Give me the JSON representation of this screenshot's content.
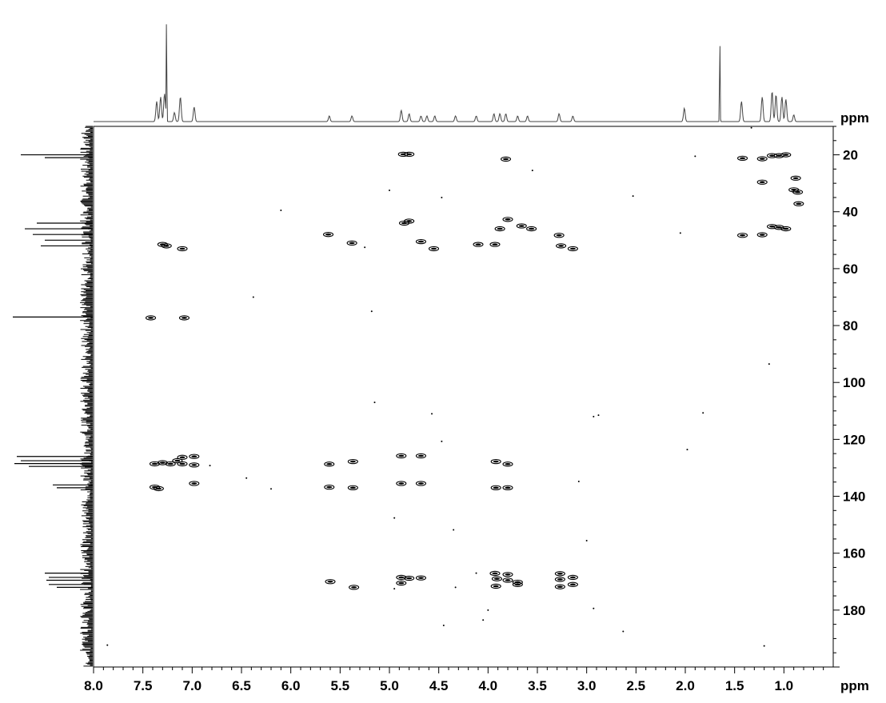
{
  "chart_data": {
    "type": "scatter",
    "subtype": "2D NMR contour (HMBC-style) with projections",
    "title": "",
    "xlabel": "ppm",
    "ylabel": "ppm",
    "x_axis": {
      "label": "ppm",
      "range": [
        8.0,
        0.5
      ],
      "reversed": true,
      "ticks": [
        "8.0",
        "7.5",
        "7.0",
        "6.5",
        "6.0",
        "5.5",
        "5.0",
        "4.5",
        "4.0",
        "3.5",
        "3.0",
        "2.5",
        "2.0",
        "1.5",
        "1.0"
      ]
    },
    "y_axis": {
      "label": "ppm",
      "range": [
        10,
        200
      ],
      "reversed": false,
      "ticks": [
        "20",
        "40",
        "60",
        "80",
        "100",
        "120",
        "140",
        "160",
        "180"
      ]
    },
    "grid": false,
    "color": "#000000",
    "top_projection_peaks": [
      {
        "x": 7.36,
        "h": 0.18
      },
      {
        "x": 7.32,
        "h": 0.22
      },
      {
        "x": 7.28,
        "h": 0.25
      },
      {
        "x": 7.26,
        "h": 0.98
      },
      {
        "x": 7.18,
        "h": 0.08
      },
      {
        "x": 7.12,
        "h": 0.22
      },
      {
        "x": 6.98,
        "h": 0.13
      },
      {
        "x": 5.61,
        "h": 0.05
      },
      {
        "x": 5.38,
        "h": 0.05
      },
      {
        "x": 4.88,
        "h": 0.1
      },
      {
        "x": 4.8,
        "h": 0.07
      },
      {
        "x": 4.68,
        "h": 0.05
      },
      {
        "x": 4.62,
        "h": 0.05
      },
      {
        "x": 4.54,
        "h": 0.05
      },
      {
        "x": 4.33,
        "h": 0.05
      },
      {
        "x": 4.12,
        "h": 0.05
      },
      {
        "x": 3.94,
        "h": 0.07
      },
      {
        "x": 3.88,
        "h": 0.07
      },
      {
        "x": 3.82,
        "h": 0.07
      },
      {
        "x": 3.7,
        "h": 0.05
      },
      {
        "x": 3.6,
        "h": 0.05
      },
      {
        "x": 3.28,
        "h": 0.07
      },
      {
        "x": 3.14,
        "h": 0.05
      },
      {
        "x": 2.01,
        "h": 0.12
      },
      {
        "x": 1.65,
        "h": 0.85
      },
      {
        "x": 1.43,
        "h": 0.18
      },
      {
        "x": 1.22,
        "h": 0.22
      },
      {
        "x": 1.12,
        "h": 0.27
      },
      {
        "x": 1.08,
        "h": 0.24
      },
      {
        "x": 1.02,
        "h": 0.22
      },
      {
        "x": 0.98,
        "h": 0.2
      },
      {
        "x": 0.9,
        "h": 0.06
      }
    ],
    "side_projection_peaks": [
      {
        "y": 20,
        "h": 0.9
      },
      {
        "y": 21,
        "h": 0.6
      },
      {
        "y": 44,
        "h": 0.7
      },
      {
        "y": 46,
        "h": 0.85
      },
      {
        "y": 48,
        "h": 0.75
      },
      {
        "y": 50,
        "h": 0.6
      },
      {
        "y": 52,
        "h": 0.65
      },
      {
        "y": 77,
        "h": 1.0
      },
      {
        "y": 126,
        "h": 0.95
      },
      {
        "y": 127.5,
        "h": 0.9
      },
      {
        "y": 128.5,
        "h": 0.98
      },
      {
        "y": 129.5,
        "h": 0.8
      },
      {
        "y": 136,
        "h": 0.5
      },
      {
        "y": 137,
        "h": 0.45
      },
      {
        "y": 167,
        "h": 0.6
      },
      {
        "y": 168.5,
        "h": 0.55
      },
      {
        "y": 169.5,
        "h": 0.58
      },
      {
        "y": 171,
        "h": 0.55
      },
      {
        "y": 172,
        "h": 0.45
      }
    ],
    "cross_peaks": [
      {
        "x": 4.86,
        "y": 19.8
      },
      {
        "x": 4.8,
        "y": 19.8
      },
      {
        "x": 3.82,
        "y": 21.5
      },
      {
        "x": 4.85,
        "y": 44
      },
      {
        "x": 4.8,
        "y": 43.3
      },
      {
        "x": 3.8,
        "y": 42.7
      },
      {
        "x": 5.62,
        "y": 48
      },
      {
        "x": 5.38,
        "y": 51
      },
      {
        "x": 4.68,
        "y": 50.5
      },
      {
        "x": 4.55,
        "y": 53
      },
      {
        "x": 4.1,
        "y": 51.5
      },
      {
        "x": 3.93,
        "y": 51.5
      },
      {
        "x": 3.88,
        "y": 46
      },
      {
        "x": 3.66,
        "y": 45
      },
      {
        "x": 3.56,
        "y": 46
      },
      {
        "x": 3.28,
        "y": 48.3
      },
      {
        "x": 3.26,
        "y": 52
      },
      {
        "x": 3.14,
        "y": 53
      },
      {
        "x": 7.26,
        "y": 52
      },
      {
        "x": 7.3,
        "y": 51.5
      },
      {
        "x": 7.1,
        "y": 53
      },
      {
        "x": 1.42,
        "y": 21.2
      },
      {
        "x": 1.22,
        "y": 21.4
      },
      {
        "x": 1.12,
        "y": 20.3
      },
      {
        "x": 1.05,
        "y": 20.3
      },
      {
        "x": 0.98,
        "y": 20.0
      },
      {
        "x": 1.22,
        "y": 29.6
      },
      {
        "x": 0.88,
        "y": 28.2
      },
      {
        "x": 0.9,
        "y": 32.3
      },
      {
        "x": 0.86,
        "y": 33.1
      },
      {
        "x": 0.85,
        "y": 37.2
      },
      {
        "x": 1.42,
        "y": 48.3
      },
      {
        "x": 1.22,
        "y": 48.1
      },
      {
        "x": 1.12,
        "y": 45.2
      },
      {
        "x": 1.05,
        "y": 45.5
      },
      {
        "x": 0.98,
        "y": 46.0
      },
      {
        "x": 7.42,
        "y": 77.3
      },
      {
        "x": 7.08,
        "y": 77.3
      },
      {
        "x": 7.38,
        "y": 128.6
      },
      {
        "x": 7.3,
        "y": 128.2
      },
      {
        "x": 7.22,
        "y": 128.6
      },
      {
        "x": 7.15,
        "y": 127.5
      },
      {
        "x": 7.1,
        "y": 126.3
      },
      {
        "x": 7.1,
        "y": 128.6
      },
      {
        "x": 6.98,
        "y": 126.0
      },
      {
        "x": 6.98,
        "y": 129.0
      },
      {
        "x": 7.38,
        "y": 136.8
      },
      {
        "x": 7.34,
        "y": 137.3
      },
      {
        "x": 6.98,
        "y": 135.5
      },
      {
        "x": 5.61,
        "y": 128.7
      },
      {
        "x": 5.37,
        "y": 127.8
      },
      {
        "x": 5.61,
        "y": 136.8
      },
      {
        "x": 5.37,
        "y": 137.0
      },
      {
        "x": 4.88,
        "y": 125.8
      },
      {
        "x": 4.68,
        "y": 125.8
      },
      {
        "x": 4.88,
        "y": 135.5
      },
      {
        "x": 4.68,
        "y": 135.5
      },
      {
        "x": 3.92,
        "y": 127.8
      },
      {
        "x": 3.8,
        "y": 128.7
      },
      {
        "x": 3.92,
        "y": 137.0
      },
      {
        "x": 3.8,
        "y": 137.0
      },
      {
        "x": 4.88,
        "y": 168.5
      },
      {
        "x": 4.8,
        "y": 168.8
      },
      {
        "x": 4.68,
        "y": 168.7
      },
      {
        "x": 4.88,
        "y": 170.5
      },
      {
        "x": 3.93,
        "y": 167.1
      },
      {
        "x": 3.91,
        "y": 169.0
      },
      {
        "x": 3.92,
        "y": 171.6
      },
      {
        "x": 3.8,
        "y": 167.5
      },
      {
        "x": 3.8,
        "y": 169.5
      },
      {
        "x": 3.7,
        "y": 170.2
      },
      {
        "x": 3.7,
        "y": 171.0
      },
      {
        "x": 3.27,
        "y": 167.2
      },
      {
        "x": 3.27,
        "y": 169.2
      },
      {
        "x": 3.27,
        "y": 171.8
      },
      {
        "x": 3.14,
        "y": 168.5
      },
      {
        "x": 3.14,
        "y": 171.0
      },
      {
        "x": 5.6,
        "y": 170.0
      },
      {
        "x": 5.36,
        "y": 172.0
      }
    ],
    "noise_dots": [
      {
        "x": 1.33,
        "y": 10.5
      },
      {
        "x": 3.55,
        "y": 25.5
      },
      {
        "x": 5.0,
        "y": 32.5
      },
      {
        "x": 4.47,
        "y": 35.0
      },
      {
        "x": 2.53,
        "y": 34.5
      },
      {
        "x": 6.1,
        "y": 39.5
      },
      {
        "x": 1.9,
        "y": 20.5
      },
      {
        "x": 2.05,
        "y": 47.5
      },
      {
        "x": 5.25,
        "y": 52.5
      },
      {
        "x": 6.38,
        "y": 70.0
      },
      {
        "x": 5.18,
        "y": 75.0
      },
      {
        "x": 1.15,
        "y": 93.5
      },
      {
        "x": 5.15,
        "y": 107.0
      },
      {
        "x": 4.57,
        "y": 111.0
      },
      {
        "x": 2.93,
        "y": 112.0
      },
      {
        "x": 2.88,
        "y": 111.5
      },
      {
        "x": 1.82,
        "y": 110.7
      },
      {
        "x": 4.47,
        "y": 120.7
      },
      {
        "x": 1.98,
        "y": 123.6
      },
      {
        "x": 6.82,
        "y": 129.2
      },
      {
        "x": 6.45,
        "y": 133.6
      },
      {
        "x": 6.2,
        "y": 137.4
      },
      {
        "x": 3.08,
        "y": 134.8
      },
      {
        "x": 4.95,
        "y": 147.6
      },
      {
        "x": 4.35,
        "y": 151.8
      },
      {
        "x": 3.0,
        "y": 155.6
      },
      {
        "x": 4.0,
        "y": 180.0
      },
      {
        "x": 4.05,
        "y": 183.5
      },
      {
        "x": 4.45,
        "y": 185.4
      },
      {
        "x": 2.93,
        "y": 179.4
      },
      {
        "x": 2.63,
        "y": 187.5
      },
      {
        "x": 7.86,
        "y": 192.3
      },
      {
        "x": 1.2,
        "y": 192.6
      },
      {
        "x": 4.95,
        "y": 172.5
      },
      {
        "x": 4.33,
        "y": 172.0
      },
      {
        "x": 4.12,
        "y": 167.0
      }
    ]
  }
}
